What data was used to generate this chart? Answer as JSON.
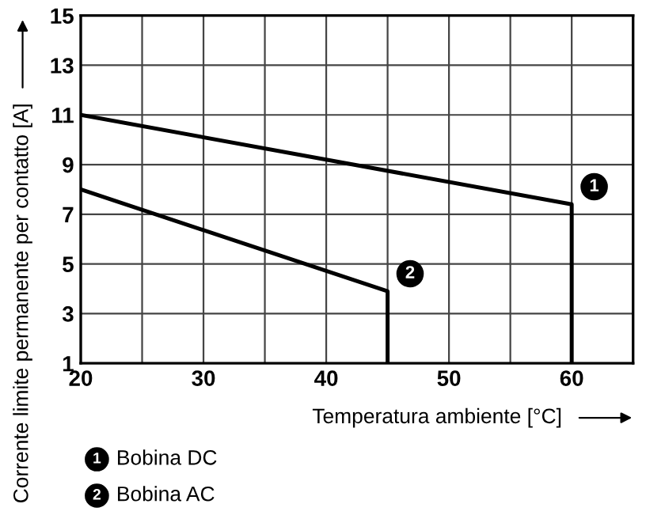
{
  "chart_data": {
    "type": "line",
    "xlabel": "Temperatura ambiente [°C]",
    "ylabel": "Corrente limite permanente per contatto [A]",
    "xlim": [
      20,
      65
    ],
    "ylim": [
      1,
      15
    ],
    "xticks": [
      20,
      {
        "value": 25,
        "label": null
      },
      30,
      {
        "value": 35,
        "label": null
      },
      40,
      {
        "value": 45,
        "label": null
      },
      50,
      {
        "value": 55,
        "label": null
      },
      60,
      {
        "value": 65,
        "label": null
      }
    ],
    "yticks": [
      1,
      3,
      5,
      7,
      9,
      11,
      13,
      15
    ],
    "series": [
      {
        "name": "Bobina DC",
        "color": "#000000",
        "x": [
          20,
          60,
          60
        ],
        "values": [
          11,
          7.4,
          1
        ]
      },
      {
        "name": "Bobina AC",
        "color": "#000000",
        "x": [
          20,
          45,
          45
        ],
        "values": [
          8,
          3.9,
          1
        ]
      }
    ],
    "annotations": [
      {
        "text": "1",
        "x": 60,
        "y": 7.4
      },
      {
        "text": "2",
        "x": 45,
        "y": 3.9
      }
    ],
    "grid": true,
    "legend": "bottom",
    "line_style": "solid",
    "marker": "none"
  }
}
